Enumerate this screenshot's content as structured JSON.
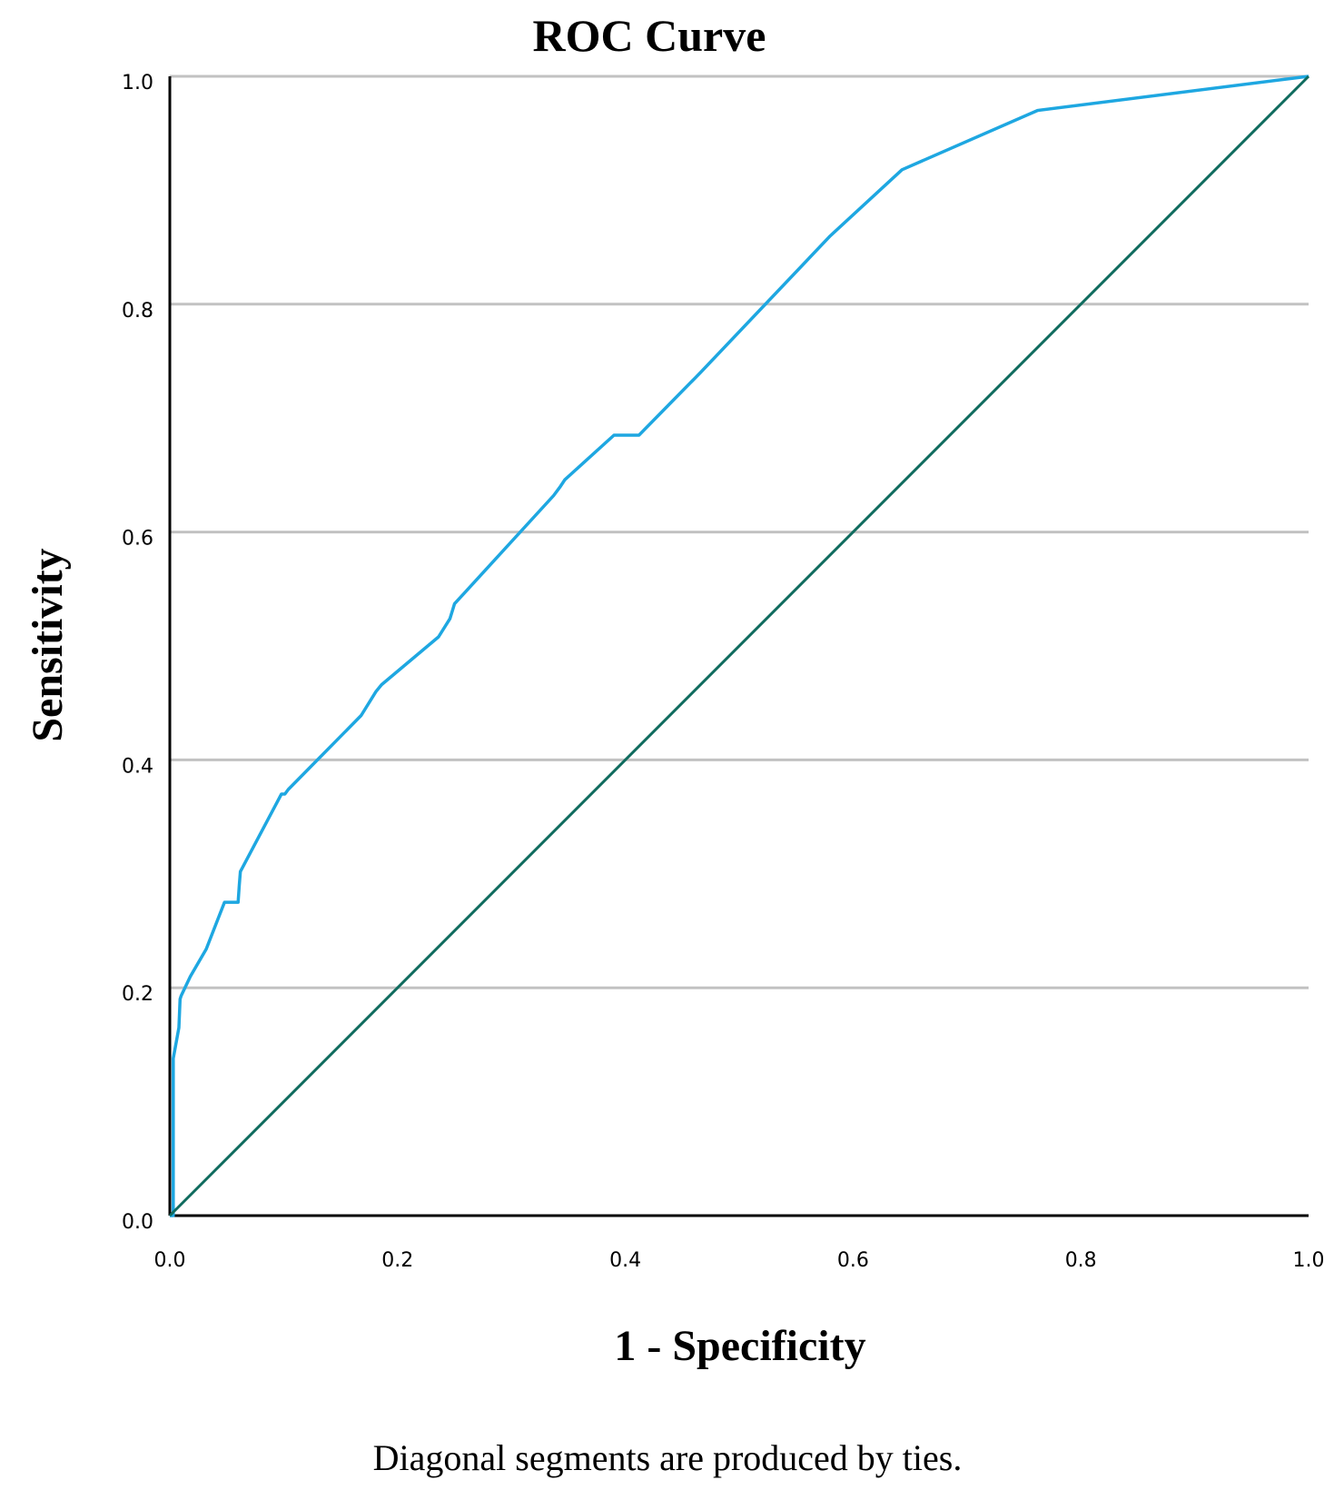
{
  "chart_data": {
    "type": "line",
    "title": "ROC Curve",
    "xlabel": "1 - Specificity",
    "ylabel": "Sensitivity",
    "footnote": "Diagonal segments are produced by ties.",
    "xlim": [
      0,
      1
    ],
    "ylim": [
      0,
      1
    ],
    "xticks": [
      "0.0",
      "0.2",
      "0.4",
      "0.6",
      "0.8",
      "1.0"
    ],
    "yticks": [
      "0.0",
      "0.2",
      "0.4",
      "0.6",
      "0.8",
      "1.0"
    ],
    "grid": "horizontal",
    "series": [
      {
        "color": "#1ea7e1",
        "x": [
          0.0,
          0.003,
          0.003,
          0.008,
          0.009,
          0.01,
          0.018,
          0.032,
          0.048,
          0.06,
          0.061,
          0.062,
          0.098,
          0.101,
          0.104,
          0.168,
          0.181,
          0.186,
          0.236,
          0.246,
          0.25,
          0.337,
          0.343,
          0.347,
          0.39,
          0.412,
          0.466,
          0.58,
          0.643,
          0.762,
          1.0
        ],
        "y": [
          0.0,
          0.0,
          0.138,
          0.165,
          0.19,
          0.193,
          0.21,
          0.234,
          0.275,
          0.275,
          0.29,
          0.302,
          0.37,
          0.37,
          0.374,
          0.439,
          0.46,
          0.466,
          0.508,
          0.524,
          0.537,
          0.632,
          0.64,
          0.646,
          0.685,
          0.685,
          0.74,
          0.86,
          0.918,
          0.97,
          1.0
        ]
      },
      {
        "color": "#0f6b5e",
        "x": [
          0,
          1
        ],
        "y": [
          0,
          1
        ]
      }
    ]
  }
}
